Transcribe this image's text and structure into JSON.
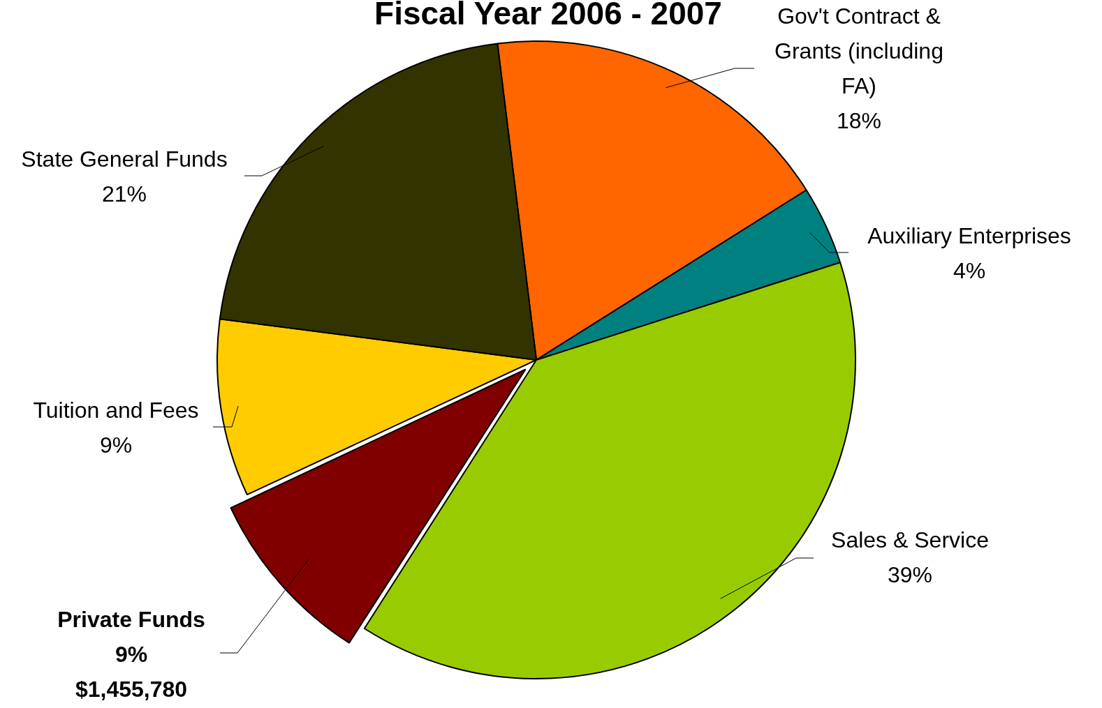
{
  "chart_data": {
    "type": "pie",
    "title": "Fiscal Year 2006 - 2007",
    "categories": [
      "Gov't Contract & Grants (including FA)",
      "Auxiliary Enterprises",
      "Sales & Service",
      "Private Funds",
      "Tuition and Fees",
      "State General Funds"
    ],
    "values": [
      18,
      4,
      39,
      9,
      9,
      21
    ],
    "colors": [
      "#ff6600",
      "#008080",
      "#99cc00",
      "#800000",
      "#ffcc00",
      "#333300"
    ],
    "value_labels": [
      "18%",
      "4%",
      "39%",
      "9%",
      "9%",
      "21%"
    ],
    "annotations": [
      "$1,455,780"
    ],
    "legend": false
  }
}
